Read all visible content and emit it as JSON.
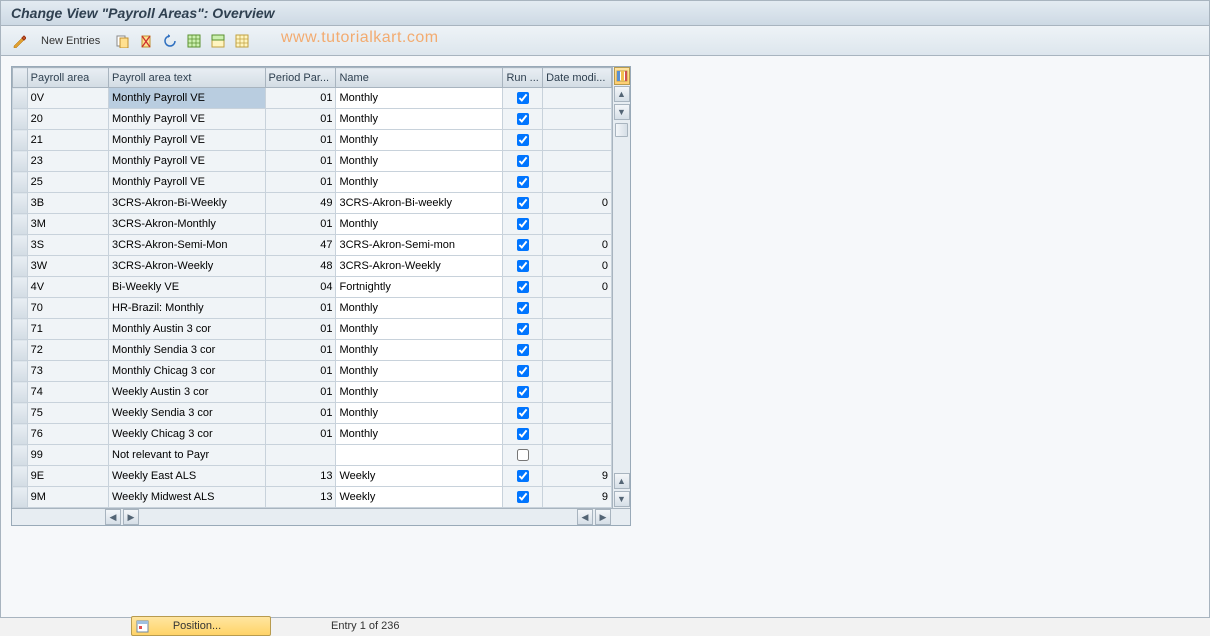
{
  "title": "Change View \"Payroll Areas\": Overview",
  "watermark": "www.tutorialkart.com",
  "toolbar": {
    "new_entries_label": "New Entries"
  },
  "columns": {
    "payroll_area": "Payroll area",
    "payroll_text": "Payroll area text",
    "period_par": "Period Par...",
    "name": "Name",
    "run": "Run ...",
    "date_modi": "Date modi..."
  },
  "rows": [
    {
      "area": "0V",
      "text": "Monthly Payroll  VE",
      "period": "01",
      "name": "Monthly",
      "run": true,
      "date": "",
      "selected": true
    },
    {
      "area": "20",
      "text": "Monthly Payroll  VE",
      "period": "01",
      "name": "Monthly",
      "run": true,
      "date": ""
    },
    {
      "area": "21",
      "text": "Monthly Payroll  VE",
      "period": "01",
      "name": "Monthly",
      "run": true,
      "date": ""
    },
    {
      "area": "23",
      "text": "Monthly Payroll  VE",
      "period": "01",
      "name": "Monthly",
      "run": true,
      "date": ""
    },
    {
      "area": "25",
      "text": "Monthly Payroll  VE",
      "period": "01",
      "name": "Monthly",
      "run": true,
      "date": ""
    },
    {
      "area": "3B",
      "text": "3CRS-Akron-Bi-Weekly",
      "period": "49",
      "name": "3CRS-Akron-Bi-weekly",
      "run": true,
      "date": "0"
    },
    {
      "area": "3M",
      "text": "3CRS-Akron-Monthly",
      "period": "01",
      "name": "Monthly",
      "run": true,
      "date": ""
    },
    {
      "area": "3S",
      "text": "3CRS-Akron-Semi-Mon",
      "period": "47",
      "name": "3CRS-Akron-Semi-mon",
      "run": true,
      "date": "0"
    },
    {
      "area": "3W",
      "text": "3CRS-Akron-Weekly",
      "period": "48",
      "name": "3CRS-Akron-Weekly",
      "run": true,
      "date": "0"
    },
    {
      "area": "4V",
      "text": "Bi-Weekly VE",
      "period": "04",
      "name": "Fortnightly",
      "run": true,
      "date": "0"
    },
    {
      "area": "70",
      "text": "HR-Brazil: Monthly",
      "period": "01",
      "name": "Monthly",
      "run": true,
      "date": ""
    },
    {
      "area": "71",
      "text": "Monthly Austin 3 cor",
      "period": "01",
      "name": "Monthly",
      "run": true,
      "date": ""
    },
    {
      "area": "72",
      "text": "Monthly Sendia 3 cor",
      "period": "01",
      "name": "Monthly",
      "run": true,
      "date": ""
    },
    {
      "area": "73",
      "text": "Monthly Chicag 3 cor",
      "period": "01",
      "name": "Monthly",
      "run": true,
      "date": ""
    },
    {
      "area": "74",
      "text": "Weekly Austin 3 cor",
      "period": "01",
      "name": "Monthly",
      "run": true,
      "date": ""
    },
    {
      "area": "75",
      "text": "Weekly Sendia 3 cor",
      "period": "01",
      "name": "Monthly",
      "run": true,
      "date": ""
    },
    {
      "area": "76",
      "text": "Weekly Chicag 3 cor",
      "period": "01",
      "name": "Monthly",
      "run": true,
      "date": ""
    },
    {
      "area": "99",
      "text": "Not relevant to Payr",
      "period": "",
      "name": "",
      "run": false,
      "date": ""
    },
    {
      "area": "9E",
      "text": "Weekly East ALS",
      "period": "13",
      "name": "Weekly",
      "run": true,
      "date": "9"
    },
    {
      "area": "9M",
      "text": "Weekly Midwest ALS",
      "period": "13",
      "name": "Weekly",
      "run": true,
      "date": "9"
    }
  ],
  "col_widths": {
    "sel": 14,
    "area": 78,
    "text": 150,
    "period": 68,
    "name": 160,
    "run": 38,
    "date": 66
  },
  "footer": {
    "position_label": "Position...",
    "entry_label": "Entry 1 of 236"
  },
  "colors": {
    "header_bg_top": "#e3ebf2",
    "header_bg_bot": "#cdd9e4",
    "border": "#a8b4bf",
    "editable_bg": "#f0f4f7",
    "selected_bg": "#b9cde0",
    "watermark": "#f5a05a",
    "button_gold_top": "#ffe6a0",
    "button_gold_bot": "#ffd368"
  }
}
